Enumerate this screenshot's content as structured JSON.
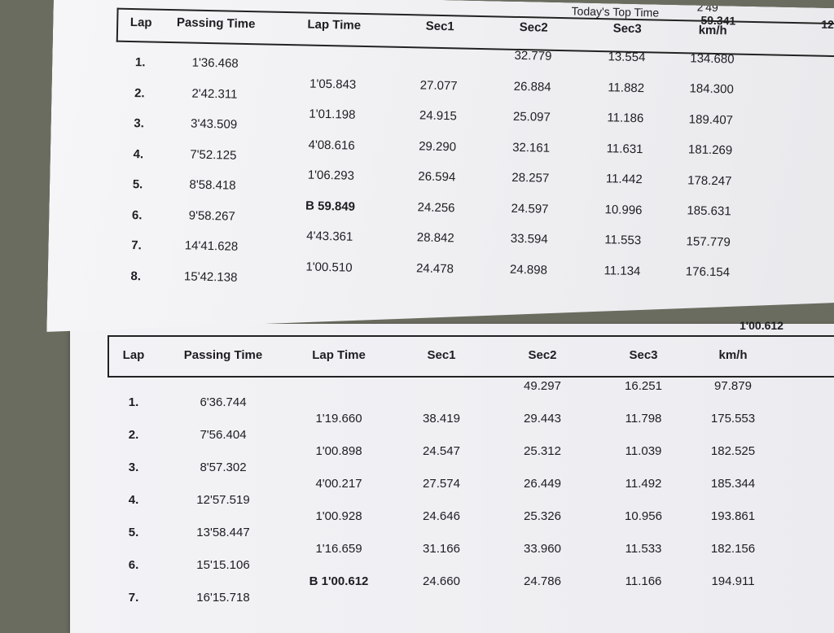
{
  "top_sheet": {
    "top_time_label": "Today's Top Time",
    "top_time_value": "59.341",
    "top_time_partial": "2'49",
    "edge_text": "12",
    "headers": [
      "Lap",
      "Passing Time",
      "Lap Time",
      "Sec1",
      "Sec2",
      "Sec3",
      "km/h"
    ],
    "rows": [
      {
        "lap": "1.",
        "passing": "1'36.468",
        "lap_time": "",
        "sec1": "",
        "sec2": "32.779",
        "sec3": "13.554",
        "kmh": "134.680"
      },
      {
        "lap": "2.",
        "passing": "2'42.311",
        "lap_time": "1'05.843",
        "sec1": "27.077",
        "sec2": "26.884",
        "sec3": "11.882",
        "kmh": "184.300"
      },
      {
        "lap": "3.",
        "passing": "3'43.509",
        "lap_time": "1'01.198",
        "sec1": "24.915",
        "sec2": "25.097",
        "sec3": "11.186",
        "kmh": "189.407"
      },
      {
        "lap": "4.",
        "passing": "7'52.125",
        "lap_time": "4'08.616",
        "sec1": "29.290",
        "sec2": "32.161",
        "sec3": "11.631",
        "kmh": "181.269"
      },
      {
        "lap": "5.",
        "passing": "8'58.418",
        "lap_time": "1'06.293",
        "sec1": "26.594",
        "sec2": "28.257",
        "sec3": "11.442",
        "kmh": "178.247"
      },
      {
        "lap": "6.",
        "passing": "9'58.267",
        "lap_time": "B 59.849",
        "best": true,
        "sec1": "24.256",
        "sec2": "24.597",
        "sec3": "10.996",
        "kmh": "185.631"
      },
      {
        "lap": "7.",
        "passing": "14'41.628",
        "lap_time": "4'43.361",
        "sec1": "28.842",
        "sec2": "33.594",
        "sec3": "11.553",
        "kmh": "157.779"
      },
      {
        "lap": "8.",
        "passing": "15'42.138",
        "lap_time": "1'00.510",
        "sec1": "24.478",
        "sec2": "24.898",
        "sec3": "11.134",
        "kmh": "176.154"
      }
    ]
  },
  "bottom_sheet": {
    "top_time_value": "1'00.612",
    "headers": [
      "Lap",
      "Passing Time",
      "Lap Time",
      "Sec1",
      "Sec2",
      "Sec3",
      "km/h"
    ],
    "rows": [
      {
        "lap": "1.",
        "passing": "6'36.744",
        "lap_time": "",
        "sec1": "",
        "sec2": "49.297",
        "sec3": "16.251",
        "kmh": "97.879"
      },
      {
        "lap": "2.",
        "passing": "7'56.404",
        "lap_time": "1'19.660",
        "sec1": "38.419",
        "sec2": "29.443",
        "sec3": "11.798",
        "kmh": "175.553"
      },
      {
        "lap": "3.",
        "passing": "8'57.302",
        "lap_time": "1'00.898",
        "sec1": "24.547",
        "sec2": "25.312",
        "sec3": "11.039",
        "kmh": "182.525"
      },
      {
        "lap": "4.",
        "passing": "12'57.519",
        "lap_time": "4'00.217",
        "sec1": "27.574",
        "sec2": "26.449",
        "sec3": "11.492",
        "kmh": "185.344"
      },
      {
        "lap": "5.",
        "passing": "13'58.447",
        "lap_time": "1'00.928",
        "sec1": "24.646",
        "sec2": "25.326",
        "sec3": "10.956",
        "kmh": "193.861"
      },
      {
        "lap": "6.",
        "passing": "15'15.106",
        "lap_time": "1'16.659",
        "sec1": "31.166",
        "sec2": "33.960",
        "sec3": "11.533",
        "kmh": "182.156"
      },
      {
        "lap": "7.",
        "passing": "16'15.718",
        "lap_time": "B 1'00.612",
        "best": true,
        "sec1": "24.660",
        "sec2": "24.786",
        "sec3": "11.166",
        "kmh": "194.911"
      }
    ]
  }
}
